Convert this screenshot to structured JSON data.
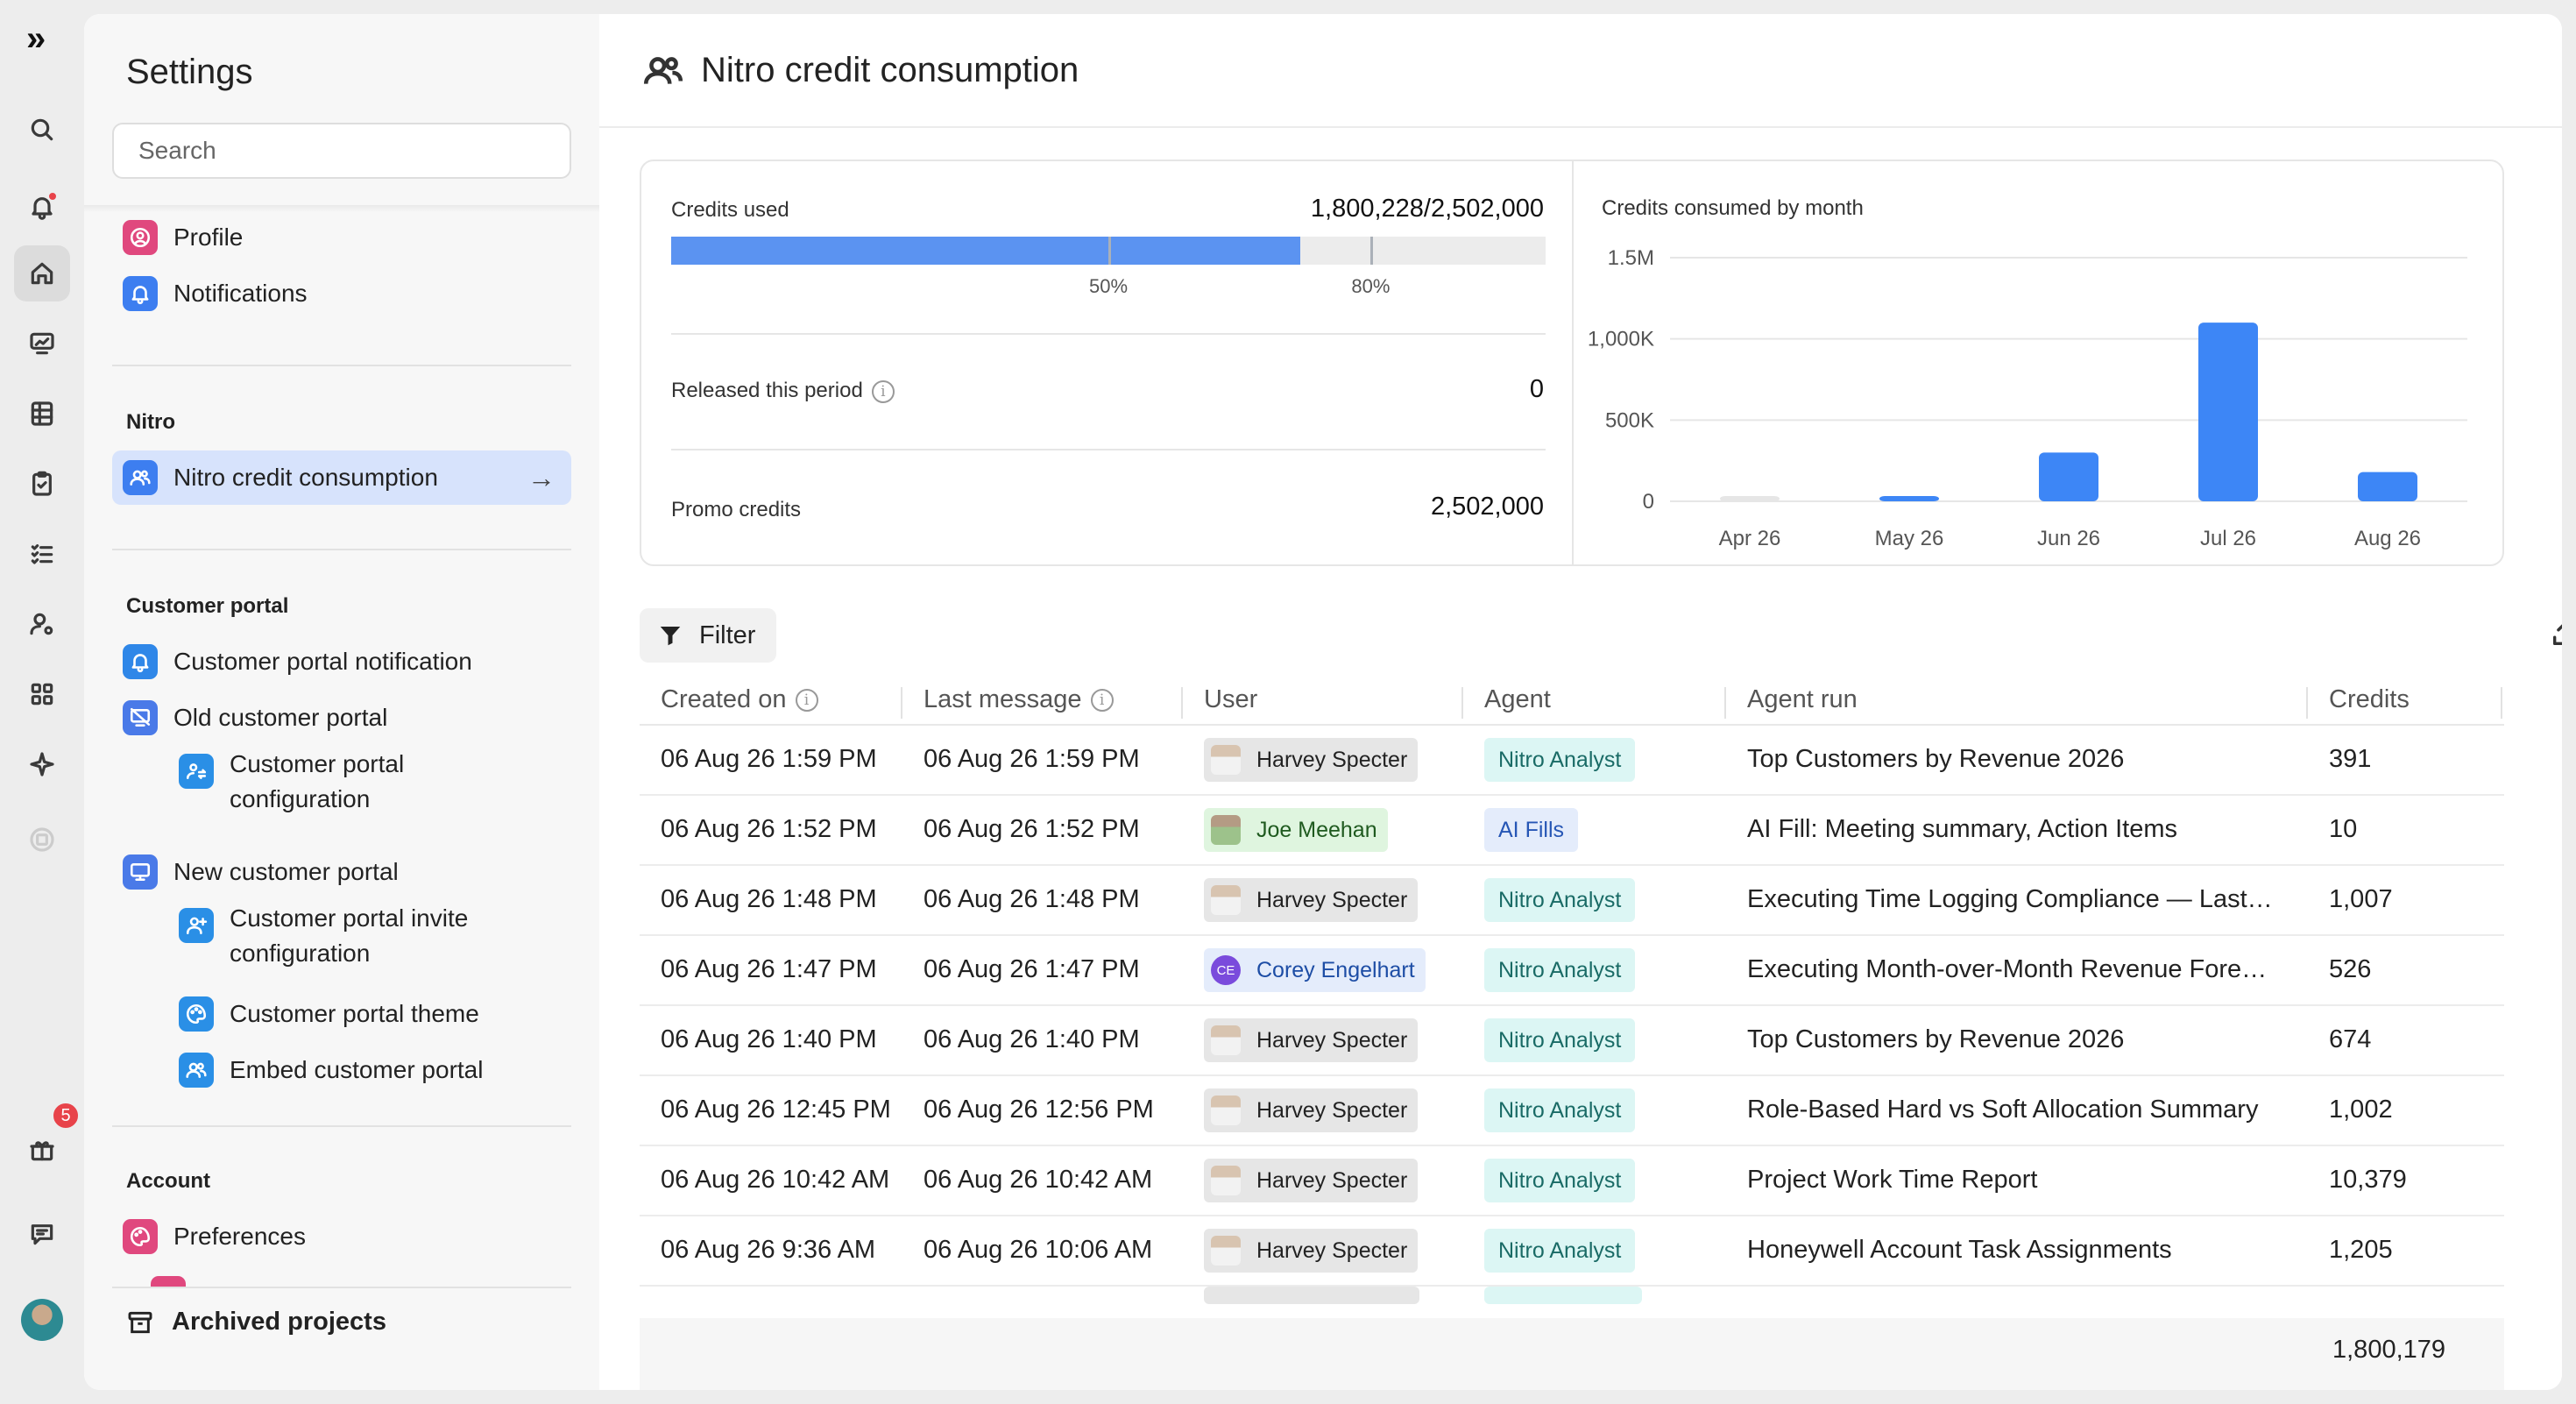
{
  "rail": {
    "logo": "»",
    "notification_badge": "5",
    "items": [
      "search-icon",
      "bell-icon",
      "home-icon",
      "monitor-chart-icon",
      "spreadsheet-icon",
      "clipboard-icon",
      "checklist-icon",
      "user-cog-icon",
      "apps-icon",
      "sparkle-icon",
      "circle-icon",
      "gift-icon",
      "chat-icon",
      "avatar"
    ]
  },
  "sidebar": {
    "title": "Settings",
    "search_placeholder": "Search",
    "items_top": [
      {
        "label": "Profile",
        "icon": "user-circle-icon",
        "color": "#e0487e"
      },
      {
        "label": "Notifications",
        "icon": "bell-icon",
        "color": "#3d7ef0"
      }
    ],
    "section_nitro": "Nitro",
    "nitro_item": {
      "label": "Nitro credit consumption",
      "icon": "users-icon",
      "color": "#3d7ef0"
    },
    "section_portal": "Customer portal",
    "portal_items": [
      {
        "label": "Customer portal notification",
        "icon": "bell-icon",
        "color": "#2f87e8"
      },
      {
        "label": "Old customer portal",
        "icon": "monitor-off-icon",
        "color": "#4a7ae8"
      },
      {
        "label": "Customer portal configuration",
        "icon": "user-switch-icon",
        "color": "#2a8fe6",
        "sub": true
      },
      {
        "label": "New customer portal",
        "icon": "monitor-icon",
        "color": "#4a7ae8"
      },
      {
        "label": "Customer portal invite configuration",
        "icon": "user-plus-icon",
        "color": "#2a8fe6",
        "sub": true
      },
      {
        "label": "Customer portal theme",
        "icon": "palette-icon",
        "color": "#2a8fe6",
        "sub": true
      },
      {
        "label": "Embed customer portal",
        "icon": "users-icon",
        "color": "#2a8fe6",
        "sub": true
      }
    ],
    "section_account": "Account",
    "account_items": [
      {
        "label": "Preferences",
        "icon": "palette-icon",
        "color": "#e0487e"
      }
    ],
    "archived": "Archived projects"
  },
  "page": {
    "title": "Nitro credit consumption"
  },
  "stats": {
    "credits_used_label": "Credits used",
    "credits_used_value": "1,800,228/2,502,000",
    "progress_fraction": 0.7195,
    "markers": [
      {
        "label": "50%",
        "fraction": 0.5
      },
      {
        "label": "80%",
        "fraction": 0.8
      }
    ],
    "released_label": "Released this period",
    "released_value": "0",
    "promo_label": "Promo credits",
    "promo_value": "2,502,000"
  },
  "chart_data": {
    "type": "bar",
    "title": "Credits consumed by month",
    "categories": [
      "Apr 26",
      "May 26",
      "Jun 26",
      "Jul 26",
      "Aug 26"
    ],
    "values": [
      15000,
      25000,
      300000,
      1100000,
      180000
    ],
    "ytick_values": [
      0,
      500000,
      1000000,
      1500000
    ],
    "yticks": [
      "0",
      "500K",
      "1,000K",
      "1.5M"
    ],
    "ylim": [
      0,
      1500000
    ],
    "colors": [
      "#e6e6e6",
      "#3d86f6",
      "#3d86f6",
      "#3d86f6",
      "#3d86f6"
    ],
    "grid": true
  },
  "toolbar": {
    "filter_label": "Filter"
  },
  "table": {
    "columns": [
      "Created on",
      "Last message",
      "User",
      "Agent",
      "Agent run",
      "Credits"
    ],
    "rows": [
      {
        "created": "06 Aug 26 1:59 PM",
        "last": "06 Aug 26 1:59 PM",
        "user": "Harvey Specter",
        "user_style": "gray",
        "agent": "Nitro Analyst",
        "agent_style": "teal",
        "run": "Top Customers by Revenue 2026",
        "credits": "391"
      },
      {
        "created": "06 Aug 26 1:52 PM",
        "last": "06 Aug 26 1:52 PM",
        "user": "Joe Meehan",
        "user_style": "green",
        "agent": "AI Fills",
        "agent_style": "blue",
        "run": "AI Fill: Meeting summary, Action Items",
        "credits": "10"
      },
      {
        "created": "06 Aug 26 1:48 PM",
        "last": "06 Aug 26 1:48 PM",
        "user": "Harvey Specter",
        "user_style": "gray",
        "agent": "Nitro Analyst",
        "agent_style": "teal",
        "run": "Executing Time Logging Compliance — Last ...",
        "credits": "1,007"
      },
      {
        "created": "06 Aug 26 1:47 PM",
        "last": "06 Aug 26 1:47 PM",
        "user": "Corey Engelhart",
        "user_style": "blue",
        "user_initials": "CE",
        "agent": "Nitro Analyst",
        "agent_style": "teal",
        "run": "Executing Month-over-Month Revenue Forec...",
        "credits": "526"
      },
      {
        "created": "06 Aug 26 1:40 PM",
        "last": "06 Aug 26 1:40 PM",
        "user": "Harvey Specter",
        "user_style": "gray",
        "agent": "Nitro Analyst",
        "agent_style": "teal",
        "run": "Top Customers by Revenue 2026",
        "credits": "674"
      },
      {
        "created": "06 Aug 26 12:45 PM",
        "last": "06 Aug 26 12:56 PM",
        "user": "Harvey Specter",
        "user_style": "gray",
        "agent": "Nitro Analyst",
        "agent_style": "teal",
        "run": "Role-Based Hard vs Soft Allocation Summary",
        "credits": "1,002"
      },
      {
        "created": "06 Aug 26 10:42 AM",
        "last": "06 Aug 26 10:42 AM",
        "user": "Harvey Specter",
        "user_style": "gray",
        "agent": "Nitro Analyst",
        "agent_style": "teal",
        "run": "Project Work Time Report",
        "credits": "10,379"
      },
      {
        "created": "06 Aug 26 9:36 AM",
        "last": "06 Aug 26 10:06 AM",
        "user": "Harvey Specter",
        "user_style": "gray",
        "agent": "Nitro Analyst",
        "agent_style": "teal",
        "run": "Honeywell Account Task Assignments",
        "credits": "1,205"
      }
    ],
    "total": "1,800,179"
  }
}
